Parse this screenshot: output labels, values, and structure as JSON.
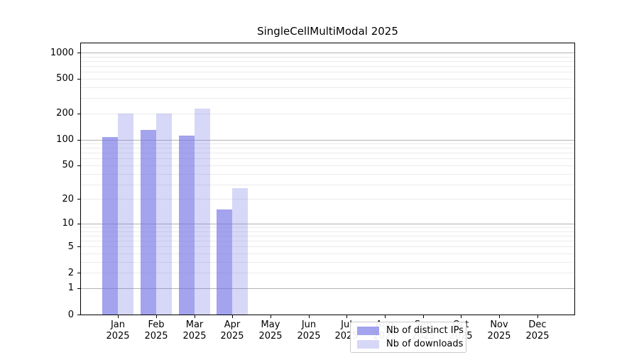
{
  "chart_data": {
    "type": "bar",
    "title": "SingleCellMultiModal 2025",
    "xlabel": "",
    "ylabel": "",
    "y_scale": "log1p",
    "grid": "horizontal",
    "legend_position": "lower-center",
    "x_tick_labels": [
      {
        "month": "Jan",
        "year": "2025"
      },
      {
        "month": "Feb",
        "year": "2025"
      },
      {
        "month": "Mar",
        "year": "2025"
      },
      {
        "month": "Apr",
        "year": "2025"
      },
      {
        "month": "May",
        "year": "2025"
      },
      {
        "month": "Jun",
        "year": "2025"
      },
      {
        "month": "Jul",
        "year": "2025"
      },
      {
        "month": "Aug",
        "year": "2025"
      },
      {
        "month": "Sep",
        "year": "2025"
      },
      {
        "month": "Oct",
        "year": "2025"
      },
      {
        "month": "Nov",
        "year": "2025"
      },
      {
        "month": "Dec",
        "year": "2025"
      }
    ],
    "categories": [
      "Jan 2025",
      "Feb 2025",
      "Mar 2025",
      "Apr 2025",
      "May 2025",
      "Jun 2025",
      "Jul 2025",
      "Aug 2025",
      "Sep 2025",
      "Oct 2025",
      "Nov 2025",
      "Dec 2025"
    ],
    "y_ticks": [
      {
        "value": 1000,
        "label": "1000"
      },
      {
        "value": 500,
        "label": "500"
      },
      {
        "value": 200,
        "label": "200"
      },
      {
        "value": 100,
        "label": "100"
      },
      {
        "value": 50,
        "label": "50"
      },
      {
        "value": 20,
        "label": "20"
      },
      {
        "value": 10,
        "label": "10"
      },
      {
        "value": 5,
        "label": "5"
      },
      {
        "value": 2,
        "label": "2"
      },
      {
        "value": 1,
        "label": "1"
      },
      {
        "value": 0,
        "label": "0"
      }
    ],
    "ylim": [
      0,
      1300
    ],
    "series": [
      {
        "name": "Nb of distinct IPs",
        "color": "rgba(113,113,229,0.65)",
        "apparent_color": "#a2a2ee",
        "values": [
          106,
          130,
          112,
          15,
          0,
          0,
          0,
          0,
          0,
          0,
          0,
          0
        ]
      },
      {
        "name": "Nb of downloads",
        "color": "rgba(113,113,229,0.28)",
        "apparent_color": "#d7d7f7",
        "values": [
          200,
          200,
          228,
          27,
          0,
          0,
          0,
          0,
          0,
          0,
          0,
          0
        ]
      }
    ],
    "colors": {
      "background": "#ffffff",
      "axis": "#000000",
      "major_grid": "#b3b3b3",
      "minor_grid": "#ebebeb",
      "legend_border": "#c9c9c9"
    }
  }
}
